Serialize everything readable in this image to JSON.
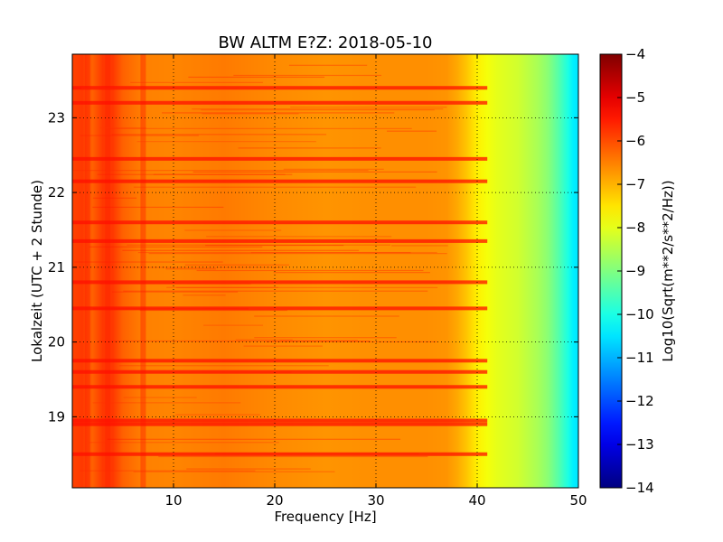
{
  "chart_data": {
    "type": "heatmap",
    "title": "BW ALTM E?Z: 2018-05-10",
    "xlabel": "Frequency [Hz]",
    "ylabel": "Lokalzeit (UTC + 2 Stunde)",
    "xlim": [
      0,
      50
    ],
    "ylim": [
      23.85,
      18.05
    ],
    "x_ticks": [
      10,
      20,
      30,
      40,
      50
    ],
    "x_tick_labels": [
      "10",
      "20",
      "30",
      "40",
      "50"
    ],
    "y_ticks": [
      19,
      20,
      21,
      22,
      23
    ],
    "y_tick_labels": [
      "19",
      "20",
      "21",
      "22",
      "23"
    ],
    "grid": true,
    "colormap": "jet",
    "colorbar": {
      "label": "Log10(Sqrt(m**2/s**2/Hz))",
      "range": [
        -14,
        -4
      ],
      "ticks": [
        -4,
        -5,
        -6,
        -7,
        -8,
        -9,
        -10,
        -11,
        -12,
        -13,
        -14
      ],
      "tick_labels": [
        "−4",
        "−5",
        "−6",
        "−7",
        "−8",
        "−9",
        "−10",
        "−11",
        "−12",
        "−13",
        "−14"
      ]
    },
    "level_profile_vs_frequency": {
      "frequency_hz": [
        0,
        1,
        2,
        3,
        4,
        5,
        7,
        10,
        15,
        20,
        25,
        30,
        35,
        37,
        38,
        39,
        40,
        41,
        42,
        44,
        46,
        47,
        48,
        49,
        49.5,
        50
      ],
      "log10_amplitude": [
        -5.9,
        -5.8,
        -6.2,
        -5.8,
        -5.8,
        -6.2,
        -6.5,
        -6.55,
        -6.45,
        -6.6,
        -6.7,
        -6.65,
        -6.65,
        -6.7,
        -6.9,
        -7.2,
        -7.6,
        -7.85,
        -8.0,
        -8.2,
        -8.6,
        -8.9,
        -9.4,
        -10.0,
        -10.4,
        -10.5
      ]
    },
    "high_amplitude_time_bands_hours": [
      18.5,
      18.9,
      18.95,
      19.4,
      19.6,
      19.75,
      20.45,
      20.8,
      21.35,
      21.6,
      22.15,
      22.45,
      23.2,
      23.4
    ],
    "vertical_stripe_frequencies_hz": [
      1.5,
      3.5,
      7
    ]
  }
}
